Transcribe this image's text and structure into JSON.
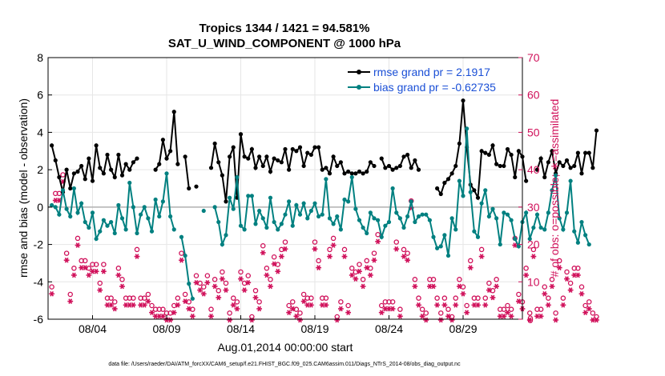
{
  "chart_data": {
    "type": "line",
    "title_line1": "Tropics 1344 / 1421 = 94.581%",
    "title_line2": "SAT_U_WIND_COMPONENT @ 1000 hPa",
    "ylabel_left": "rmse and bias (model - observation)",
    "ylabel_right": "# of obs: o=possible; ∗=assimilated",
    "xlabel": "Aug.01,2014 00:00:00 start",
    "footer": "data file: /Users/raeder/DAI/ATM_forcXX/CAM6_setup/f.e21.FHIST_BGC.f09_025.CAM6assim.011/Diags_NTrS_2014-08/obs_diag_output.nc",
    "xlim": [
      1,
      33
    ],
    "ylim_left": [
      -6,
      8
    ],
    "ylim_right": [
      0,
      70
    ],
    "yticks_left": [
      "-6",
      "-4",
      "-2",
      "0",
      "2",
      "4",
      "6",
      "8"
    ],
    "yticks_right": [
      "0",
      "10",
      "20",
      "30",
      "40",
      "50",
      "60",
      "70"
    ],
    "xticks": [
      {
        "x": 4,
        "label": "08/04"
      },
      {
        "x": 9,
        "label": "08/09"
      },
      {
        "x": 14,
        "label": "08/14"
      },
      {
        "x": 19,
        "label": "08/19"
      },
      {
        "x": 24,
        "label": "08/24"
      },
      {
        "x": 29,
        "label": "08/29"
      }
    ],
    "grid": true,
    "legend_position": "top-right",
    "x_step_days": 0.25,
    "x_start_day": 1,
    "series": [
      {
        "name": "rmse grand pr = 2.1917",
        "color": "#000000",
        "axis": "left",
        "values": [
          3.3,
          2.5,
          1.6,
          0.8,
          2.0,
          1.0,
          1.8,
          1.9,
          2.2,
          1.5,
          2.6,
          1.4,
          3.3,
          2.1,
          1.8,
          2.8,
          2.0,
          1.6,
          2.8,
          1.7,
          2.3,
          2.0,
          2.4,
          2.6,
          null,
          null,
          null,
          null,
          2.0,
          2.3,
          3.6,
          2.6,
          3.0,
          5.1,
          2.3,
          null,
          2.7,
          1.0,
          null,
          1.1,
          null,
          null,
          null,
          2.1,
          3.4,
          2.4,
          1.7,
          0.3,
          2.7,
          3.2,
          0.5,
          3.9,
          2.7,
          2.6,
          3.1,
          2.1,
          2.7,
          2.2,
          2.7,
          1.9,
          2.6,
          2.5,
          2.4,
          3.1,
          2.0,
          3.1,
          3.0,
          3.2,
          2.2,
          2.9,
          2.8,
          3.2,
          3.2,
          2.0,
          2.1,
          1.8,
          2.7,
          2.2,
          2.4,
          1.8,
          1.9,
          1.8,
          1.8,
          1.9,
          1.8,
          1.9,
          2.4,
          2.2,
          null,
          2.6,
          2.1,
          2.2,
          2.0,
          2.1,
          2.2,
          2.7,
          2.8,
          2.1,
          2.5,
          2.0,
          null,
          null,
          null,
          null,
          1.0,
          0.7,
          1.3,
          1.5,
          1.8,
          2.2,
          3.4,
          5.7,
          3.2,
          1.2,
          0.9,
          0.5,
          3.0,
          2.9,
          2.8,
          3.3,
          2.3,
          2.2,
          2.2,
          3.1,
          2.8,
          1.6,
          3.0,
          2.7,
          1.4,
          null,
          null,
          2.0,
          2.6,
          1.6,
          2.4,
          3.0,
          1.8,
          2.4,
          2.2,
          2.5,
          2.1,
          2.2,
          2.9,
          1.8,
          2.9,
          2.9,
          2.1,
          4.1
        ],
        "values_t0": 1.25
      },
      {
        "name": "bias grand pr = -0.62735",
        "color": "#008080",
        "axis": "left",
        "values": [
          0.1,
          0.0,
          -0.4,
          0.9,
          -0.1,
          -0.5,
          1.0,
          -0.3,
          0.2,
          -0.8,
          -1.1,
          -0.3,
          -1.7,
          -1.3,
          -0.7,
          -1.0,
          -0.8,
          -1.4,
          0.1,
          -0.6,
          -1.2,
          1.3,
          0.0,
          -1.4,
          -0.4,
          0.0,
          -0.6,
          -1.3,
          0.4,
          -0.5,
          0.3,
          1.8,
          -0.5,
          -1.2,
          null,
          -1.6,
          -2.6,
          -4.1,
          -4.9,
          null,
          null,
          -0.2,
          null,
          null,
          0.0,
          -0.8,
          -2.0,
          -1.5,
          0.5,
          -0.1,
          1.6,
          -1.0,
          -1.2,
          0.6,
          0.6,
          -0.9,
          -0.2,
          -0.6,
          -1.1,
          0.5,
          -0.8,
          -1.2,
          -0.9,
          -0.4,
          0.3,
          -1.0,
          0.1,
          -0.4,
          0.2,
          -0.6,
          -0.2,
          0.2,
          -0.5,
          -0.4,
          1.5,
          -0.6,
          -0.9,
          -0.5,
          -1.2,
          0.4,
          0.3,
          1.6,
          -0.1,
          -0.7,
          -1.1,
          -1.4,
          -0.3,
          -0.6,
          -0.7,
          -1.6,
          -1.0,
          -0.8,
          1.0,
          -0.3,
          -0.6,
          -1.1,
          -0.5,
          0.3,
          -0.8,
          -0.5,
          -0.4,
          -0.4,
          -0.7,
          -1.6,
          -2.2,
          -2.1,
          -1.5,
          -2.6,
          -0.6,
          -1.2,
          1.4,
          0.6,
          4.2,
          0.8,
          -1.3,
          -1.6,
          0.2,
          0.9,
          -0.5,
          -0.1,
          -0.6,
          -2.0,
          -0.3,
          -0.4,
          -0.7,
          -1.7,
          -2.1,
          -0.8,
          -0.3,
          -1.7,
          -1.1,
          -0.4,
          -1.1,
          -1.2,
          -0.3,
          0.9,
          1.7,
          -0.6,
          -1.2,
          -0.3,
          1.4,
          -1.3,
          -1.9,
          -0.8,
          -1.5,
          -2.0
        ],
        "values_t0": 1.25
      }
    ],
    "obs_possible": {
      "color": "#d0105a",
      "marker": "circle",
      "axis": "right",
      "values": [
        8,
        33,
        33,
        38,
        17,
        6,
        13,
        21,
        15,
        15,
        13,
        14,
        14,
        9,
        14,
        5,
        5,
        4,
        13,
        10,
        5,
        5,
        5,
        18,
        5,
        5,
        6,
        3,
        2,
        2,
        2,
        1,
        1,
        3,
        5,
        17,
        6,
        4,
        2,
        11,
        9,
        8,
        11,
        2,
        10,
        7,
        12,
        9,
        1,
        5,
        4,
        12,
        9,
        11,
        0,
        7,
        4,
        19,
        13,
        10,
        16,
        14,
        18,
        20,
        3,
        4,
        2,
        1,
        6,
        5,
        5,
        20,
        15,
        5,
        5,
        18,
        21,
        0,
        4,
        18,
        3,
        13,
        12,
        14,
        10,
        15,
        13,
        17,
        22,
        3,
        4,
        4,
        4,
        20,
        2,
        18,
        17,
        31,
        10,
        5,
        2,
        1,
        10,
        10,
        5,
        1,
        5,
        2,
        0,
        5,
        10,
        8,
        3,
        15,
        5,
        5,
        18,
        5,
        9,
        7,
        10,
        2,
        2,
        3,
        2,
        21,
        6,
        4,
        13,
        1,
        18,
        2,
        2,
        8,
        5,
        10,
        1,
        15,
        5,
        12,
        9,
        13,
        13,
        8,
        3,
        4,
        1,
        0
      ]
    },
    "obs_assimilated": {
      "color": "#d0105a",
      "marker": "asterisk",
      "axis": "right",
      "values": [
        7,
        32,
        32,
        37,
        16,
        5,
        12,
        20,
        14,
        14,
        12,
        13,
        13,
        8,
        13,
        4,
        4,
        3,
        12,
        9,
        4,
        4,
        4,
        17,
        4,
        4,
        5,
        2,
        1,
        1,
        1,
        0,
        0,
        2,
        4,
        16,
        5,
        3,
        1,
        10,
        8,
        7,
        10,
        1,
        9,
        6,
        11,
        8,
        0,
        4,
        3,
        11,
        8,
        10,
        0,
        6,
        3,
        18,
        12,
        9,
        15,
        13,
        17,
        19,
        2,
        3,
        1,
        0,
        5,
        4,
        4,
        19,
        14,
        4,
        4,
        17,
        20,
        0,
        3,
        17,
        2,
        12,
        11,
        13,
        9,
        14,
        12,
        16,
        21,
        2,
        3,
        3,
        3,
        19,
        1,
        17,
        16,
        30,
        9,
        4,
        1,
        0,
        9,
        9,
        4,
        0,
        4,
        1,
        0,
        4,
        9,
        7,
        2,
        14,
        4,
        4,
        17,
        4,
        8,
        6,
        9,
        1,
        1,
        2,
        1,
        20,
        5,
        3,
        12,
        0,
        17,
        1,
        1,
        7,
        4,
        9,
        0,
        14,
        4,
        11,
        8,
        12,
        12,
        7,
        2,
        3,
        0,
        0
      ]
    }
  }
}
